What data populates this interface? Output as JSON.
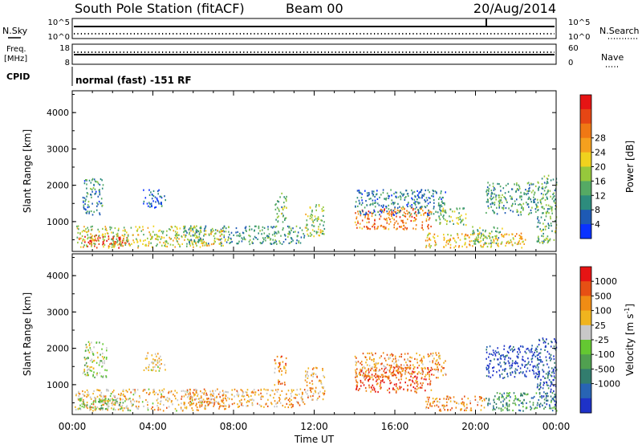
{
  "header": {
    "title": "South Pole Station (fitACF)",
    "beam": "Beam 00",
    "date": "20/Aug/2014"
  },
  "top_panels": {
    "nsky_label": "N.Sky",
    "nsky_ticks": [
      "10^5",
      "10^0"
    ],
    "nsearch_label": "N.Search",
    "nsearch_ticks": [
      "10^5",
      "10^0"
    ],
    "freq_label": "Freq.",
    "freq_unit": "[MHz]",
    "freq_ticks": [
      "18",
      "8"
    ],
    "nave_label": "Nave",
    "nave_ticks": [
      "60",
      "0"
    ],
    "cpid_label": "CPID",
    "cpid_text": "normal (fast) -151 RF"
  },
  "x_axis": {
    "label": "Time UT",
    "ticks": [
      "00:00",
      "04:00",
      "08:00",
      "12:00",
      "16:00",
      "20:00",
      "00:00"
    ]
  },
  "chart_data": [
    {
      "type": "heatmap",
      "name": "power",
      "ylabel": "Slant Range [km]",
      "yticks": [
        1000,
        2000,
        3000,
        4000
      ],
      "ylim": [
        180,
        4600
      ],
      "xlim": [
        0,
        24
      ],
      "colorbar": {
        "label": "Power [dB]",
        "ticks": [
          "4",
          "8",
          "12",
          "16",
          "20",
          "24",
          "28"
        ],
        "colors": [
          "#0a32ff",
          "#1e5ab4",
          "#2d8c7d",
          "#55aa64",
          "#96c83c",
          "#f0d21e",
          "#f5a01e",
          "#f07814",
          "#e64614",
          "#e61414"
        ]
      },
      "regions": [
        {
          "t": [
            0.3,
            2.8
          ],
          "r": [
            300,
            650
          ],
          "level": 0.92
        },
        {
          "t": [
            0.2,
            6.5
          ],
          "r": [
            300,
            900
          ],
          "level": 0.5
        },
        {
          "t": [
            0.5,
            1.5
          ],
          "r": [
            1200,
            2200
          ],
          "level": 0.25
        },
        {
          "t": [
            3.5,
            4.6
          ],
          "r": [
            1400,
            1900
          ],
          "level": 0.15
        },
        {
          "t": [
            5.5,
            11.5
          ],
          "r": [
            400,
            900
          ],
          "level": 0.3
        },
        {
          "t": [
            6.5,
            7.6
          ],
          "r": [
            350,
            800
          ],
          "level": 0.55
        },
        {
          "t": [
            10.0,
            10.6
          ],
          "r": [
            1000,
            1800
          ],
          "level": 0.35
        },
        {
          "t": [
            11.5,
            12.5
          ],
          "r": [
            600,
            1500
          ],
          "level": 0.45
        },
        {
          "t": [
            14.0,
            17.8
          ],
          "r": [
            800,
            1400
          ],
          "level": 0.75
        },
        {
          "t": [
            14.0,
            18.5
          ],
          "r": [
            1200,
            1900
          ],
          "level": 0.22
        },
        {
          "t": [
            18.0,
            19.5
          ],
          "r": [
            900,
            1400
          ],
          "level": 0.4
        },
        {
          "t": [
            17.5,
            22.5
          ],
          "r": [
            300,
            700
          ],
          "level": 0.6
        },
        {
          "t": [
            19.8,
            21.3
          ],
          "r": [
            400,
            900
          ],
          "level": 0.35
        },
        {
          "t": [
            20.5,
            23.0
          ],
          "r": [
            1200,
            2100
          ],
          "level": 0.3
        },
        {
          "t": [
            23.0,
            24.0
          ],
          "r": [
            400,
            2300
          ],
          "level": 0.35
        }
      ]
    },
    {
      "type": "heatmap",
      "name": "velocity",
      "ylabel": "Slant Range [km]",
      "yticks": [
        1000,
        2000,
        3000,
        4000
      ],
      "ylim": [
        180,
        4600
      ],
      "xlim": [
        0,
        24
      ],
      "colorbar": {
        "label": "Velocity [m s^-1]",
        "unit": "m s",
        "unit_sup": "-1",
        "ticks": [
          "1000",
          "500",
          "100",
          "25",
          "-25",
          "-100",
          "-500",
          "-1000"
        ],
        "colors": [
          "#1e32c8",
          "#2864b4",
          "#327d6e",
          "#50a050",
          "#64c832",
          "#c8c8c8",
          "#f0b41e",
          "#f08c14",
          "#e65014",
          "#e61414"
        ]
      },
      "regions": [
        {
          "t": [
            0.1,
            6.5
          ],
          "r": [
            300,
            900
          ],
          "level": 0.65
        },
        {
          "t": [
            0.3,
            3.0
          ],
          "r": [
            300,
            650
          ],
          "level": 0.45
        },
        {
          "t": [
            0.5,
            1.7
          ],
          "r": [
            1200,
            2200
          ],
          "level": 0.5
        },
        {
          "t": [
            3.5,
            4.6
          ],
          "r": [
            1400,
            1900
          ],
          "level": 0.6
        },
        {
          "t": [
            5.5,
            11.5
          ],
          "r": [
            400,
            900
          ],
          "level": 0.68
        },
        {
          "t": [
            6.5,
            7.6
          ],
          "r": [
            350,
            800
          ],
          "level": 0.7
        },
        {
          "t": [
            10.0,
            10.6
          ],
          "r": [
            1000,
            1800
          ],
          "level": 0.75
        },
        {
          "t": [
            11.5,
            12.5
          ],
          "r": [
            600,
            1500
          ],
          "level": 0.7
        },
        {
          "t": [
            14.0,
            17.8
          ],
          "r": [
            800,
            1500
          ],
          "level": 0.85
        },
        {
          "t": [
            14.0,
            18.5
          ],
          "r": [
            1200,
            1900
          ],
          "level": 0.72
        },
        {
          "t": [
            17.5,
            20.5
          ],
          "r": [
            300,
            700
          ],
          "level": 0.72
        },
        {
          "t": [
            20.5,
            24.0
          ],
          "r": [
            300,
            800
          ],
          "level": 0.3
        },
        {
          "t": [
            20.5,
            23.2
          ],
          "r": [
            1200,
            2100
          ],
          "level": 0.08
        },
        {
          "t": [
            23.0,
            24.0
          ],
          "r": [
            400,
            2300
          ],
          "level": 0.15
        }
      ]
    }
  ]
}
